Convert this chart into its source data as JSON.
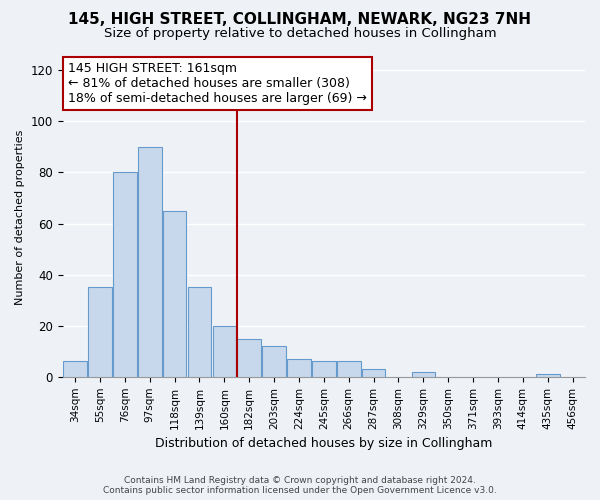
{
  "title": "145, HIGH STREET, COLLINGHAM, NEWARK, NG23 7NH",
  "subtitle": "Size of property relative to detached houses in Collingham",
  "xlabel": "Distribution of detached houses by size in Collingham",
  "ylabel": "Number of detached properties",
  "bar_color": "#c8d8ec",
  "bar_edge_color": "#6699cc",
  "bin_labels": [
    "34sqm",
    "55sqm",
    "76sqm",
    "97sqm",
    "118sqm",
    "139sqm",
    "160sqm",
    "182sqm",
    "203sqm",
    "224sqm",
    "245sqm",
    "266sqm",
    "287sqm",
    "308sqm",
    "329sqm",
    "350sqm",
    "371sqm",
    "393sqm",
    "414sqm",
    "435sqm",
    "456sqm"
  ],
  "bar_heights": [
    6,
    35,
    80,
    90,
    65,
    35,
    20,
    15,
    12,
    7,
    6,
    6,
    3,
    0,
    2,
    0,
    0,
    0,
    0,
    1,
    0
  ],
  "vline_color": "#aa0000",
  "annotation_title": "145 HIGH STREET: 161sqm",
  "annotation_line1": "← 81% of detached houses are smaller (308)",
  "annotation_line2": "18% of semi-detached houses are larger (69) →",
  "annotation_box_color": "#ffffff",
  "annotation_box_edge_color": "#aa0000",
  "ylim": [
    0,
    125
  ],
  "yticks": [
    0,
    20,
    40,
    60,
    80,
    100,
    120
  ],
  "footer_line1": "Contains HM Land Registry data © Crown copyright and database right 2024.",
  "footer_line2": "Contains public sector information licensed under the Open Government Licence v3.0.",
  "background_color": "#eef2f7",
  "grid_color": "#ffffff",
  "title_fontsize": 11,
  "subtitle_fontsize": 9.5,
  "annotation_fontsize": 9,
  "xlabel_fontsize": 9,
  "ylabel_fontsize": 8,
  "footer_fontsize": 6.5
}
